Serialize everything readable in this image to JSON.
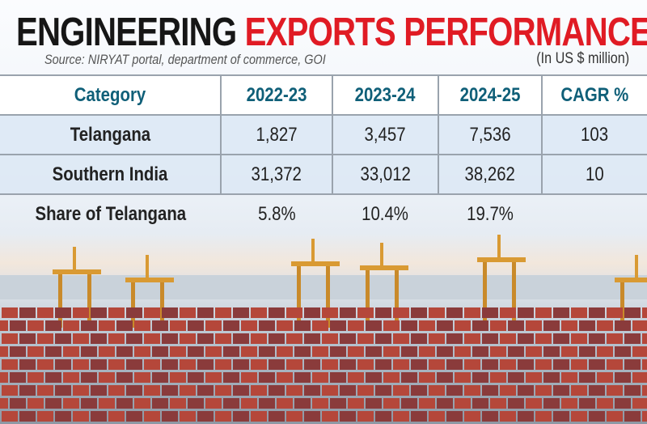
{
  "title_part1": "ENGINEERING",
  "title_part2": "EXPORTS PERFORMANCE",
  "source": "Source: NIRYAT portal, department of commerce, GOI",
  "unit": "(In US $ million)",
  "colors": {
    "title_dark": "#161616",
    "title_red": "#e01b24",
    "header_text": "#0f5f78"
  },
  "chart_data": {
    "type": "table",
    "columns": [
      "Category",
      "2022-23",
      "2023-24",
      "2024-25",
      "CAGR %"
    ],
    "rows": [
      [
        "Telangana",
        "1,827",
        "3,457",
        "7,536",
        "103"
      ],
      [
        "Southern India",
        "31,372",
        "33,012",
        "38,262",
        "10"
      ],
      [
        "Share of Telangana",
        "5.8%",
        "10.4%",
        "19.7%",
        ""
      ]
    ]
  },
  "background_image": "container port with cranes and stacked shipping containers"
}
